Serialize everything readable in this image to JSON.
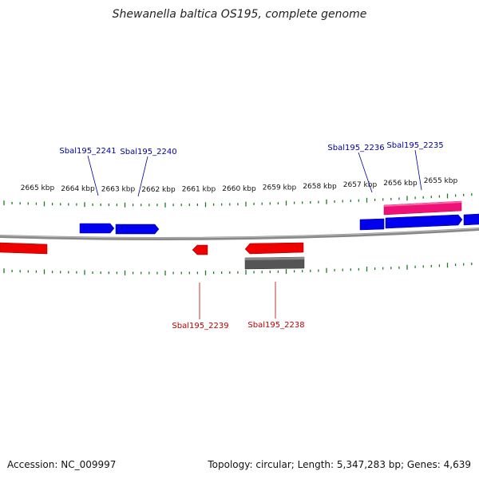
{
  "title": "Shewanella baltica OS195, complete genome",
  "footer": {
    "accession": "Accession: NC_009997",
    "summary": "Topology: circular; Length: 5,347,283 bp; Genes: 4,639"
  },
  "colors": {
    "forward_gene": "#0000ee",
    "reverse_gene": "#ee0000",
    "highlight_gene": "#ee1177",
    "rna_gene": "#555555",
    "tick": "#227722",
    "backbone": "#888888",
    "label_forward": "#000099",
    "label_reverse": "#bb0000"
  },
  "scale_labels": [
    "2665 kbp",
    "2664 kbp",
    "2663 kbp",
    "2662 kbp",
    "2661 kbp",
    "2660 kbp",
    "2659 kbp",
    "2658 kbp",
    "2657 kbp",
    "2656 kbp",
    "2655 kbp"
  ],
  "gene_labels": [
    {
      "name": "Sbal195_2241",
      "strand": "forward"
    },
    {
      "name": "Sbal195_2240",
      "strand": "forward"
    },
    {
      "name": "Sbal195_2236",
      "strand": "forward"
    },
    {
      "name": "Sbal195_2235",
      "strand": "forward"
    },
    {
      "name": "Sbal195_2239",
      "strand": "reverse"
    },
    {
      "name": "Sbal195_2238",
      "strand": "reverse"
    }
  ]
}
